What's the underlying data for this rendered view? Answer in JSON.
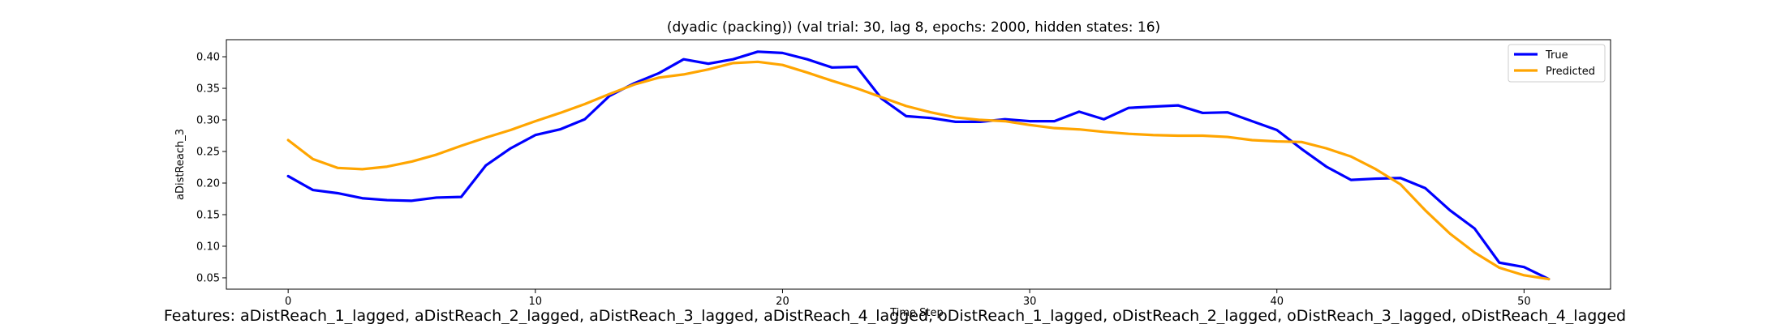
{
  "chart_data": {
    "type": "line",
    "title": "(dyadic (packing)) (val trial: 30, lag 8, epochs: 2000, hidden states: 16)",
    "xlabel": "Time Step",
    "ylabel": "aDistReach_3",
    "xlim": [
      -2.5,
      53.5
    ],
    "ylim": [
      0.032,
      0.427
    ],
    "xticks": [
      0,
      10,
      20,
      30,
      40,
      50
    ],
    "xtick_labels": [
      "0",
      "10",
      "20",
      "30",
      "40",
      "50"
    ],
    "yticks": [
      0.05,
      0.1,
      0.15,
      0.2,
      0.25,
      0.3,
      0.35,
      0.4
    ],
    "ytick_labels": [
      "0.05",
      "0.10",
      "0.15",
      "0.20",
      "0.25",
      "0.30",
      "0.35",
      "0.40"
    ],
    "grid": false,
    "legend_position": "top-right",
    "series": [
      {
        "name": "True",
        "color": "#0000ff",
        "x": [
          0,
          1,
          2,
          3,
          4,
          5,
          6,
          7,
          8,
          9,
          10,
          11,
          12,
          13,
          14,
          15,
          16,
          17,
          18,
          19,
          20,
          21,
          22,
          23,
          24,
          25,
          26,
          27,
          28,
          29,
          30,
          31,
          32,
          33,
          34,
          35,
          36,
          37,
          38,
          39,
          40,
          41,
          42,
          43,
          44,
          45,
          46,
          47,
          48,
          49,
          50,
          51
        ],
        "values": [
          0.211,
          0.189,
          0.184,
          0.176,
          0.173,
          0.172,
          0.177,
          0.178,
          0.228,
          0.255,
          0.276,
          0.285,
          0.301,
          0.338,
          0.358,
          0.374,
          0.396,
          0.389,
          0.396,
          0.408,
          0.406,
          0.396,
          0.383,
          0.384,
          0.334,
          0.306,
          0.303,
          0.297,
          0.297,
          0.301,
          0.298,
          0.298,
          0.313,
          0.301,
          0.319,
          0.321,
          0.323,
          0.311,
          0.312,
          0.298,
          0.284,
          0.254,
          0.226,
          0.205,
          0.207,
          0.208,
          0.192,
          0.157,
          0.128,
          0.074,
          0.067,
          0.048
        ]
      },
      {
        "name": "Predicted",
        "color": "#ffa500",
        "x": [
          0,
          1,
          2,
          3,
          4,
          5,
          6,
          7,
          8,
          9,
          10,
          11,
          12,
          13,
          14,
          15,
          16,
          17,
          18,
          19,
          20,
          21,
          22,
          23,
          24,
          25,
          26,
          27,
          28,
          29,
          30,
          31,
          32,
          33,
          34,
          35,
          36,
          37,
          38,
          39,
          40,
          41,
          42,
          43,
          44,
          45,
          46,
          47,
          48,
          49,
          50,
          51
        ],
        "values": [
          0.268,
          0.238,
          0.224,
          0.222,
          0.226,
          0.234,
          0.245,
          0.259,
          0.272,
          0.284,
          0.298,
          0.311,
          0.325,
          0.341,
          0.356,
          0.367,
          0.372,
          0.38,
          0.39,
          0.392,
          0.387,
          0.375,
          0.362,
          0.35,
          0.336,
          0.322,
          0.312,
          0.304,
          0.3,
          0.298,
          0.292,
          0.287,
          0.285,
          0.281,
          0.278,
          0.276,
          0.275,
          0.275,
          0.273,
          0.268,
          0.266,
          0.265,
          0.255,
          0.242,
          0.222,
          0.198,
          0.157,
          0.12,
          0.09,
          0.066,
          0.054,
          0.048
        ]
      }
    ],
    "footer": "Features: aDistReach_1_lagged, aDistReach_2_lagged, aDistReach_3_lagged, aDistReach_4_lagged, oDistReach_1_lagged, oDistReach_2_lagged, oDistReach_3_lagged, oDistReach_4_lagged"
  }
}
